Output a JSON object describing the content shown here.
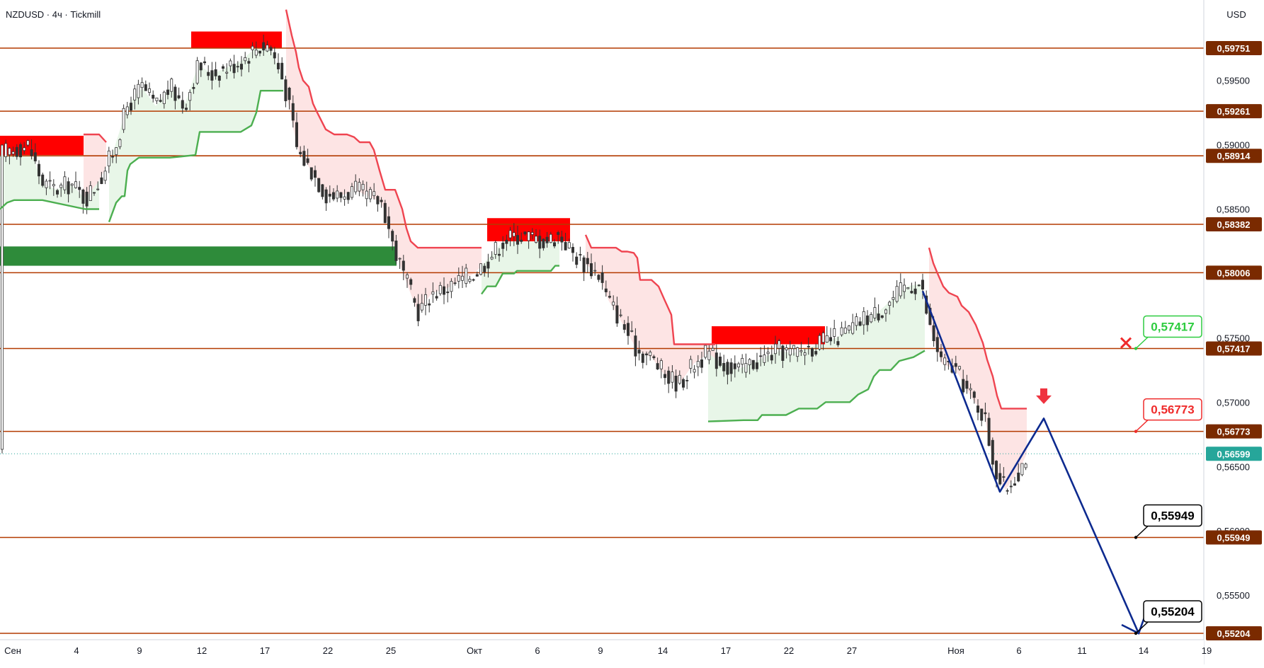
{
  "header": {
    "symbol": "NZDUSD",
    "timeframe": "4ч",
    "broker": "Tickmill"
  },
  "currency": "USD",
  "colors": {
    "level_line": "#b33a00",
    "level_badge": "#7a2a00",
    "bear_zone": "#ff0000",
    "bull_zone": "#2e8b3a",
    "supertrend_down": "#ef4450",
    "supertrend_up": "#4caf50",
    "fill_down": "#fde4e4",
    "fill_up": "#e8f6e8",
    "projection": "#0d2a8f",
    "current_price": "#26a69a",
    "candle": "#333333",
    "label_green": "#2ecc40",
    "label_red": "#ef2b2b"
  },
  "chart_data": {
    "type": "candlestick",
    "symbol": "NZDUSD",
    "ylim": [
      0.55204,
      0.6005
    ],
    "y_ticks": [
      "0,59500",
      "0,59000",
      "0,58500",
      "0,57500",
      "0,57000",
      "0,56500",
      "0,56000",
      "0,55500"
    ],
    "y_tick_values": [
      0.595,
      0.59,
      0.585,
      0.575,
      0.57,
      0.565,
      0.56,
      0.555
    ],
    "x_ticks": [
      "Сен",
      "4",
      "9",
      "12",
      "17",
      "22",
      "25",
      "Окт",
      "6",
      "9",
      "14",
      "17",
      "22",
      "27",
      "Ноя",
      "6",
      "11",
      "14",
      "19"
    ],
    "levels": [
      {
        "value": 0.59751,
        "label": "0,59751"
      },
      {
        "value": 0.59261,
        "label": "0,59261"
      },
      {
        "value": 0.58914,
        "label": "0,58914"
      },
      {
        "value": 0.58382,
        "label": "0,58382"
      },
      {
        "value": 0.58006,
        "label": "0,58006"
      },
      {
        "value": 0.57417,
        "label": "0,57417"
      },
      {
        "value": 0.56773,
        "label": "0,56773"
      },
      {
        "value": 0.55949,
        "label": "0,55949"
      },
      {
        "value": 0.55204,
        "label": "0,55204"
      }
    ],
    "current_price": {
      "value": 0.56599,
      "label": "0,56599"
    },
    "callouts": [
      {
        "value": 0.57417,
        "label": "0,57417",
        "style": "green",
        "marker": "cross"
      },
      {
        "value": 0.56773,
        "label": "0,56773",
        "style": "red",
        "marker": "down-arrow"
      },
      {
        "value": 0.55949,
        "label": "0,55949",
        "style": "black"
      },
      {
        "value": 0.55204,
        "label": "0,55204",
        "style": "black"
      }
    ],
    "projection": [
      0.57863,
      0.56304,
      0.56873,
      0.55204
    ]
  }
}
